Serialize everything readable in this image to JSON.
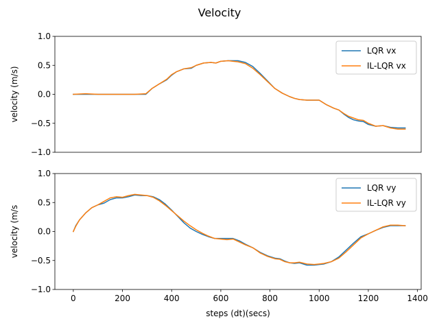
{
  "figure": {
    "title": "Velocity"
  },
  "colors": {
    "lqr": "#1f77b4",
    "illqr": "#ff7f0e"
  },
  "chart_data": [
    {
      "type": "line",
      "ylabel": "velocity (m/s)",
      "xlabel": "",
      "xlim": [
        -75,
        1415
      ],
      "ylim": [
        -1.0,
        1.0
      ],
      "yticks": [
        -1.0,
        -0.5,
        0.0,
        0.5,
        1.0
      ],
      "ytick_labels": [
        "−1.0",
        "−0.5",
        "0.0",
        "0.5",
        "1.0"
      ],
      "show_xticks": false,
      "legend": "top-right",
      "series": [
        {
          "name": "LQR vx",
          "color": "lqr",
          "x": [
            0,
            50,
            100,
            150,
            200,
            250,
            295,
            320,
            350,
            380,
            400,
            420,
            450,
            480,
            500,
            530,
            560,
            580,
            600,
            630,
            650,
            670,
            700,
            730,
            760,
            790,
            820,
            850,
            880,
            900,
            920,
            950,
            980,
            1000,
            1030,
            1060,
            1080,
            1100,
            1120,
            1140,
            1160,
            1180,
            1200,
            1230,
            1260,
            1290,
            1320,
            1350
          ],
          "y": [
            0.0,
            0.0,
            0.0,
            0.0,
            0.0,
            0.0,
            0.0,
            0.1,
            0.18,
            0.25,
            0.33,
            0.39,
            0.44,
            0.45,
            0.5,
            0.54,
            0.55,
            0.54,
            0.57,
            0.58,
            0.58,
            0.58,
            0.55,
            0.48,
            0.36,
            0.23,
            0.1,
            0.02,
            -0.04,
            -0.07,
            -0.09,
            -0.1,
            -0.1,
            -0.1,
            -0.18,
            -0.24,
            -0.27,
            -0.34,
            -0.4,
            -0.44,
            -0.46,
            -0.47,
            -0.52,
            -0.55,
            -0.54,
            -0.57,
            -0.58,
            -0.58
          ]
        },
        {
          "name": "IL-LQR vx",
          "color": "illqr",
          "x": [
            0,
            50,
            100,
            150,
            200,
            250,
            295,
            320,
            350,
            380,
            400,
            420,
            450,
            480,
            500,
            530,
            560,
            580,
            600,
            630,
            650,
            670,
            700,
            730,
            760,
            790,
            820,
            850,
            880,
            900,
            920,
            950,
            980,
            1000,
            1030,
            1060,
            1080,
            1100,
            1120,
            1140,
            1160,
            1180,
            1200,
            1230,
            1260,
            1290,
            1320,
            1350
          ],
          "y": [
            0.0,
            0.01,
            0.0,
            0.0,
            0.0,
            0.0,
            0.01,
            0.1,
            0.18,
            0.26,
            0.34,
            0.39,
            0.44,
            0.46,
            0.5,
            0.54,
            0.55,
            0.54,
            0.57,
            0.58,
            0.57,
            0.56,
            0.53,
            0.45,
            0.34,
            0.22,
            0.1,
            0.02,
            -0.04,
            -0.07,
            -0.09,
            -0.1,
            -0.1,
            -0.1,
            -0.18,
            -0.24,
            -0.27,
            -0.33,
            -0.38,
            -0.41,
            -0.44,
            -0.45,
            -0.5,
            -0.55,
            -0.54,
            -0.58,
            -0.6,
            -0.6
          ]
        }
      ]
    },
    {
      "type": "line",
      "ylabel": "velocity (m/s",
      "xlabel": "steps (dt)(secs)",
      "xlim": [
        -75,
        1415
      ],
      "ylim": [
        -1.0,
        1.0
      ],
      "xticks": [
        0,
        200,
        400,
        600,
        800,
        1000,
        1200,
        1400
      ],
      "xtick_labels": [
        "0",
        "200",
        "400",
        "600",
        "800",
        "1000",
        "1200",
        "1400"
      ],
      "yticks": [
        -1.0,
        -0.5,
        0.0,
        0.5,
        1.0
      ],
      "ytick_labels": [
        "−1.0",
        "−0.5",
        "0.0",
        "0.5",
        "1.0"
      ],
      "show_xticks": true,
      "legend": "top-right",
      "series": [
        {
          "name": "LQR vy",
          "color": "lqr",
          "x": [
            0,
            10,
            25,
            50,
            75,
            100,
            125,
            150,
            175,
            200,
            225,
            250,
            275,
            300,
            325,
            350,
            375,
            400,
            425,
            450,
            475,
            500,
            525,
            550,
            575,
            600,
            625,
            650,
            675,
            700,
            730,
            760,
            790,
            820,
            840,
            860,
            880,
            900,
            920,
            950,
            980,
            1000,
            1020,
            1050,
            1080,
            1110,
            1140,
            1170,
            1200,
            1230,
            1260,
            1290,
            1320,
            1350
          ],
          "y": [
            0.0,
            0.1,
            0.2,
            0.32,
            0.41,
            0.46,
            0.49,
            0.55,
            0.58,
            0.58,
            0.6,
            0.63,
            0.62,
            0.62,
            0.6,
            0.55,
            0.47,
            0.37,
            0.26,
            0.15,
            0.06,
            0.0,
            -0.05,
            -0.09,
            -0.12,
            -0.12,
            -0.12,
            -0.12,
            -0.16,
            -0.22,
            -0.28,
            -0.36,
            -0.42,
            -0.46,
            -0.47,
            -0.51,
            -0.54,
            -0.55,
            -0.54,
            -0.58,
            -0.58,
            -0.57,
            -0.56,
            -0.52,
            -0.44,
            -0.32,
            -0.2,
            -0.09,
            -0.04,
            0.02,
            0.07,
            0.1,
            0.1,
            0.1
          ]
        },
        {
          "name": "IL-LQR vy",
          "color": "illqr",
          "x": [
            0,
            10,
            25,
            50,
            75,
            100,
            125,
            150,
            175,
            200,
            225,
            250,
            275,
            300,
            325,
            350,
            375,
            400,
            425,
            450,
            475,
            500,
            525,
            550,
            575,
            600,
            625,
            650,
            675,
            700,
            730,
            760,
            790,
            820,
            840,
            860,
            880,
            900,
            920,
            950,
            980,
            1000,
            1020,
            1050,
            1080,
            1110,
            1140,
            1170,
            1200,
            1230,
            1260,
            1290,
            1320,
            1350
          ],
          "y": [
            0.0,
            0.09,
            0.2,
            0.32,
            0.41,
            0.46,
            0.52,
            0.58,
            0.6,
            0.59,
            0.62,
            0.64,
            0.63,
            0.62,
            0.59,
            0.53,
            0.45,
            0.36,
            0.27,
            0.18,
            0.1,
            0.03,
            -0.03,
            -0.08,
            -0.12,
            -0.13,
            -0.14,
            -0.13,
            -0.18,
            -0.23,
            -0.28,
            -0.37,
            -0.43,
            -0.47,
            -0.48,
            -0.52,
            -0.54,
            -0.54,
            -0.53,
            -0.56,
            -0.57,
            -0.56,
            -0.55,
            -0.52,
            -0.46,
            -0.35,
            -0.23,
            -0.11,
            -0.04,
            0.02,
            0.08,
            0.11,
            0.11,
            0.1
          ]
        }
      ]
    }
  ]
}
